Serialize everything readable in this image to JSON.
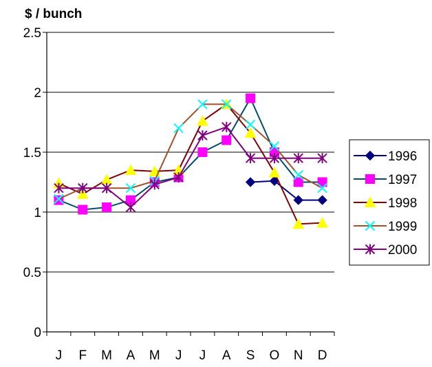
{
  "chart_data": {
    "type": "line",
    "title": "",
    "ylabel": "$ / bunch",
    "xlabel": "",
    "categories": [
      "J",
      "F",
      "M",
      "A",
      "M",
      "J",
      "J",
      "A",
      "S",
      "O",
      "N",
      "D"
    ],
    "ylim": [
      0,
      2.5
    ],
    "yticks": [
      0,
      0.5,
      1,
      1.5,
      2,
      2.5
    ],
    "ytick_labels": [
      "0",
      "0.5",
      "1",
      "1.5",
      "2",
      "2.5"
    ],
    "grid": "horizontal",
    "legend_position": "right",
    "series": [
      {
        "name": "1996",
        "color": "#000080",
        "marker": "diamond",
        "values": [
          null,
          null,
          null,
          null,
          null,
          null,
          null,
          null,
          1.25,
          1.26,
          1.1,
          1.1
        ]
      },
      {
        "name": "1997",
        "color": "#FF00FF",
        "line_color": "#004C6B",
        "marker": "square",
        "values": [
          1.1,
          1.02,
          1.04,
          1.1,
          1.25,
          1.29,
          1.5,
          1.6,
          1.95,
          1.5,
          1.25,
          1.25
        ]
      },
      {
        "name": "1998",
        "color": "#FFFF00",
        "line_color": "#800000",
        "marker": "triangle",
        "values": [
          1.24,
          1.15,
          1.27,
          1.35,
          1.34,
          1.35,
          1.76,
          1.9,
          1.66,
          1.33,
          0.9,
          0.91
        ]
      },
      {
        "name": "1999",
        "color": "#00FFFF",
        "line_color": "#A0522D",
        "marker": "x",
        "values": [
          1.11,
          1.2,
          1.2,
          1.2,
          1.26,
          1.7,
          1.9,
          1.9,
          1.73,
          1.55,
          1.31,
          1.2
        ]
      },
      {
        "name": "2000",
        "color": "#800080",
        "line_color": "#800080",
        "marker": "asterisk",
        "values": [
          1.2,
          1.2,
          1.2,
          1.04,
          1.23,
          1.29,
          1.64,
          1.71,
          1.45,
          1.45,
          1.45,
          1.45
        ]
      }
    ]
  }
}
